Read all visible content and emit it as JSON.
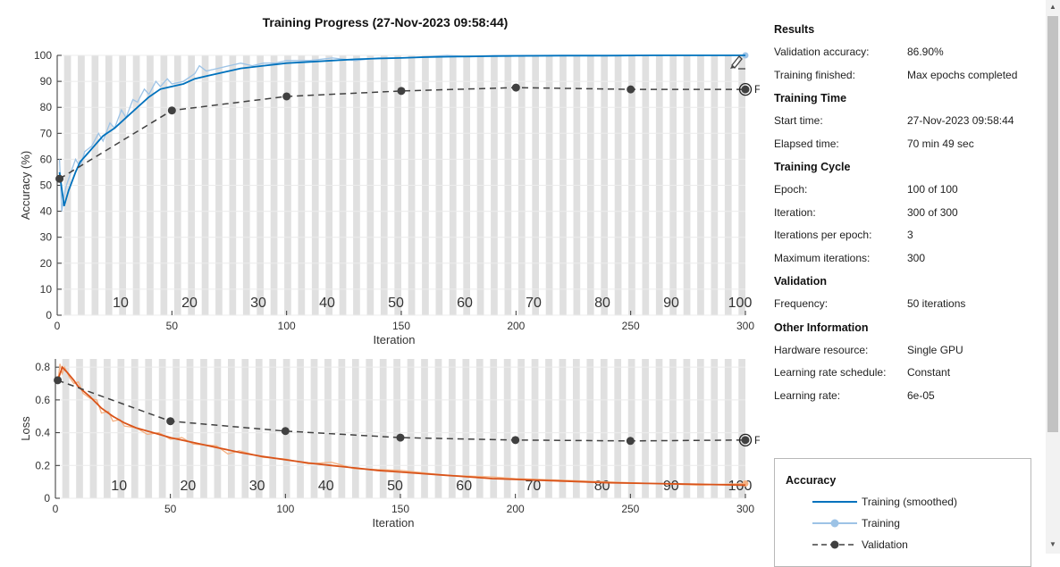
{
  "chart_data": [
    {
      "type": "line",
      "title": "Training Progress (27-Nov-2023 09:58:44)",
      "xlabel": "Iteration",
      "ylabel": "Accuracy (%)",
      "xlim": [
        0,
        300
      ],
      "ylim": [
        0,
        100
      ],
      "xticks": [
        0,
        50,
        100,
        150,
        200,
        250,
        300
      ],
      "yticks": [
        0,
        10,
        20,
        30,
        40,
        50,
        60,
        70,
        80,
        90,
        100
      ],
      "epoch_labels": [
        10,
        20,
        30,
        40,
        50,
        60,
        70,
        80,
        90,
        100
      ],
      "iterations_per_epoch": 3,
      "final_label": "Final",
      "series": [
        {
          "name": "Training (smoothed)",
          "color": "#0072BD",
          "x": [
            1,
            3,
            5,
            8,
            10,
            13,
            15,
            18,
            20,
            25,
            30,
            35,
            40,
            45,
            50,
            55,
            60,
            65,
            70,
            75,
            80,
            85,
            90,
            95,
            100,
            110,
            120,
            130,
            140,
            150,
            160,
            170,
            180,
            190,
            200,
            220,
            240,
            260,
            280,
            300
          ],
          "y": [
            55,
            42,
            48,
            55,
            59,
            62,
            64,
            67,
            69,
            72,
            76,
            80,
            84,
            87,
            88,
            89,
            91,
            92,
            93,
            94,
            95,
            95.5,
            96,
            96.5,
            97,
            97.5,
            98,
            98.5,
            98.8,
            99,
            99.3,
            99.5,
            99.6,
            99.7,
            99.8,
            99.9,
            99.9,
            100,
            100,
            100
          ]
        },
        {
          "name": "Training",
          "color": "#9DC3E6",
          "x": [
            1,
            2,
            3,
            4,
            6,
            8,
            10,
            12,
            15,
            18,
            20,
            23,
            25,
            28,
            30,
            33,
            35,
            38,
            40,
            43,
            45,
            48,
            50,
            55,
            60,
            62,
            65,
            70,
            75,
            80,
            85,
            90,
            95,
            100,
            110,
            120,
            130,
            140,
            150,
            160,
            170,
            180,
            190,
            200,
            220,
            240,
            260,
            280,
            300
          ],
          "y": [
            60,
            40,
            46,
            50,
            55,
            60,
            57,
            63,
            65,
            70,
            67,
            74,
            72,
            79,
            76,
            83,
            82,
            87,
            85,
            90,
            88,
            91,
            89,
            90,
            93,
            96,
            94,
            95,
            96,
            97,
            96,
            97,
            97,
            98,
            98,
            99,
            98,
            99,
            99,
            99.5,
            100,
            99.5,
            100,
            100,
            100,
            100,
            100,
            100,
            100
          ]
        },
        {
          "name": "Validation",
          "color": "#404040",
          "x": [
            1,
            50,
            100,
            150,
            200,
            250,
            300
          ],
          "y": [
            52.5,
            78.8,
            84.2,
            86.3,
            87.6,
            86.9,
            86.9
          ]
        }
      ]
    },
    {
      "type": "line",
      "xlabel": "Iteration",
      "ylabel": "Loss",
      "xlim": [
        0,
        300
      ],
      "ylim": [
        0,
        0.85
      ],
      "xticks": [
        0,
        50,
        100,
        150,
        200,
        250,
        300
      ],
      "yticks": [
        0,
        0.2,
        0.4,
        0.6,
        0.8
      ],
      "epoch_labels": [
        10,
        20,
        30,
        40,
        50,
        60,
        70,
        80,
        90,
        100
      ],
      "final_label": "Final",
      "series": [
        {
          "name": "Training (smoothed)",
          "color": "#D95319",
          "x": [
            1,
            3,
            5,
            8,
            10,
            15,
            20,
            25,
            30,
            35,
            40,
            45,
            50,
            60,
            70,
            80,
            90,
            100,
            110,
            120,
            130,
            140,
            150,
            160,
            170,
            180,
            190,
            200,
            220,
            240,
            260,
            280,
            300
          ],
          "y": [
            0.72,
            0.8,
            0.77,
            0.72,
            0.68,
            0.62,
            0.55,
            0.5,
            0.46,
            0.43,
            0.41,
            0.39,
            0.37,
            0.34,
            0.31,
            0.28,
            0.255,
            0.235,
            0.215,
            0.2,
            0.185,
            0.17,
            0.16,
            0.15,
            0.14,
            0.13,
            0.12,
            0.115,
            0.105,
            0.095,
            0.09,
            0.085,
            0.08
          ]
        },
        {
          "name": "Training",
          "color": "#F4B183",
          "x": [
            1,
            2,
            3,
            4,
            6,
            8,
            10,
            12,
            15,
            18,
            20,
            23,
            25,
            28,
            30,
            35,
            40,
            45,
            50,
            55,
            60,
            70,
            75,
            80,
            90,
            100,
            110,
            120,
            130,
            150,
            170,
            190,
            200,
            220,
            240,
            260,
            280,
            300
          ],
          "y": [
            0.7,
            0.82,
            0.76,
            0.8,
            0.74,
            0.7,
            0.71,
            0.64,
            0.61,
            0.6,
            0.52,
            0.53,
            0.47,
            0.48,
            0.44,
            0.43,
            0.39,
            0.4,
            0.36,
            0.37,
            0.33,
            0.32,
            0.27,
            0.29,
            0.25,
            0.24,
            0.21,
            0.22,
            0.18,
            0.17,
            0.14,
            0.13,
            0.12,
            0.11,
            0.1,
            0.09,
            0.08,
            0.09
          ]
        },
        {
          "name": "Validation",
          "color": "#404040",
          "x": [
            1,
            50,
            100,
            150,
            200,
            250,
            300
          ],
          "y": [
            0.72,
            0.47,
            0.41,
            0.37,
            0.355,
            0.35,
            0.355
          ]
        }
      ]
    }
  ],
  "info": {
    "sections": [
      {
        "title": "Results",
        "rows": [
          {
            "key": "Validation accuracy:",
            "value": "86.90%"
          },
          {
            "key": "Training finished:",
            "value": "Max epochs completed"
          }
        ]
      },
      {
        "title": "Training Time",
        "rows": [
          {
            "key": "Start time:",
            "value": "27-Nov-2023 09:58:44"
          },
          {
            "key": "Elapsed time:",
            "value": "70 min 49 sec"
          }
        ]
      },
      {
        "title": "Training Cycle",
        "rows": [
          {
            "key": "Epoch:",
            "value": "100 of 100"
          },
          {
            "key": "Iteration:",
            "value": "300 of 300"
          },
          {
            "key": "Iterations per epoch:",
            "value": "3"
          },
          {
            "key": "Maximum iterations:",
            "value": "300"
          }
        ]
      },
      {
        "title": "Validation",
        "rows": [
          {
            "key": "Frequency:",
            "value": "50 iterations"
          }
        ]
      },
      {
        "title": "Other Information",
        "rows": [
          {
            "key": "Hardware resource:",
            "value": "Single GPU"
          },
          {
            "key": "Learning rate schedule:",
            "value": "Constant"
          },
          {
            "key": "Learning rate:",
            "value": "6e-05"
          }
        ]
      }
    ]
  },
  "legend": {
    "title": "Accuracy",
    "items": [
      {
        "label": "Training (smoothed)",
        "style": "solid",
        "color": "#0072BD"
      },
      {
        "label": "Training",
        "style": "marker",
        "color": "#9DC3E6"
      },
      {
        "label": "Validation",
        "style": "dashed",
        "color": "#404040"
      }
    ]
  },
  "icons": {
    "edit": "brush-icon",
    "scroll_up": "triangle-up-icon",
    "scroll_down": "triangle-down-icon"
  }
}
